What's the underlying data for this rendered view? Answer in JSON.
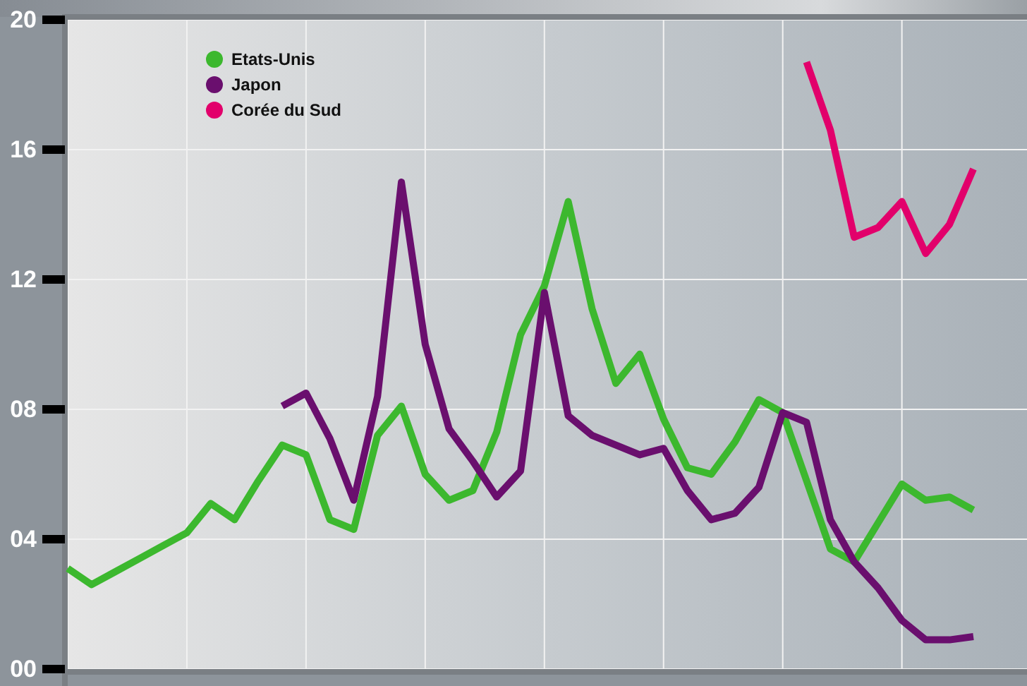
{
  "chart_data": {
    "type": "line",
    "categories": [
      null,
      null,
      null,
      null,
      null,
      null,
      null,
      null,
      null,
      null,
      null,
      null,
      null,
      null,
      null,
      null,
      null,
      null,
      null,
      null,
      null,
      null,
      null,
      null,
      null,
      null,
      null,
      null,
      null,
      null,
      null,
      null,
      null,
      null,
      null,
      null,
      null,
      null,
      null
    ],
    "ylim": [
      0,
      20
    ],
    "yticks": [
      {
        "value": 0,
        "label": "00"
      },
      {
        "value": 4,
        "label": "04"
      },
      {
        "value": 8,
        "label": "08"
      },
      {
        "value": 12,
        "label": "12"
      },
      {
        "value": 16,
        "label": "16"
      },
      {
        "value": 20,
        "label": "20"
      }
    ],
    "grid": true,
    "tick_labels": "y",
    "legend": "top left",
    "marker": "none",
    "line_style": "solid",
    "series": [
      {
        "name": "Etats-Unis",
        "color": "#3cb82e",
        "values": [
          3.1,
          2.6,
          3.0,
          3.4,
          3.8,
          4.2,
          5.1,
          4.6,
          5.8,
          6.9,
          6.6,
          4.6,
          4.3,
          7.2,
          8.1,
          6.0,
          5.2,
          5.5,
          7.3,
          10.3,
          11.8,
          14.4,
          11.1,
          8.8,
          9.7,
          7.7,
          6.2,
          6.0,
          7.0,
          8.3,
          7.9,
          5.8,
          3.7,
          3.3,
          4.5,
          5.7,
          5.2,
          5.3,
          4.9
        ]
      },
      {
        "name": "Japon",
        "color": "#6a0f6e",
        "values": [
          null,
          null,
          null,
          null,
          null,
          null,
          null,
          null,
          null,
          8.1,
          8.5,
          7.1,
          5.2,
          8.4,
          15.0,
          10.0,
          7.4,
          6.4,
          5.3,
          6.1,
          11.6,
          7.8,
          7.2,
          6.9,
          6.6,
          6.8,
          5.5,
          4.6,
          4.8,
          5.6,
          7.9,
          7.6,
          4.6,
          3.3,
          2.5,
          1.5,
          0.9,
          0.9,
          1.0
        ]
      },
      {
        "name": "Corée du Sud",
        "color": "#e2006b",
        "values": [
          null,
          null,
          null,
          null,
          null,
          null,
          null,
          null,
          null,
          null,
          null,
          null,
          null,
          null,
          null,
          null,
          null,
          null,
          null,
          null,
          null,
          null,
          null,
          null,
          null,
          null,
          null,
          null,
          null,
          null,
          null,
          18.7,
          16.6,
          13.3,
          13.6,
          14.4,
          12.8,
          13.7,
          15.4
        ]
      }
    ]
  }
}
